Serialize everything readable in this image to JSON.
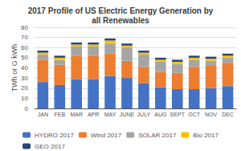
{
  "chart_data": {
    "type": "bar",
    "stacked": true,
    "title": "2017 Profile of US Electric Energy Generation by\nall Renewables",
    "ylabel": "TWh or G kWh",
    "categories": [
      "JAN",
      "FEB",
      "MAR",
      "APR",
      "MAY",
      "JUNE",
      "JULY",
      "AUG",
      "SEPT",
      "OCT",
      "NOV",
      "DEC"
    ],
    "series": [
      {
        "name": "HYDRO 2017",
        "color": "#4472c4",
        "values": [
          26,
          23,
          29,
          29,
          32,
          30,
          25,
          21,
          19,
          19,
          20,
          22
        ]
      },
      {
        "name": "Wind 2017",
        "color": "#ed7d31",
        "values": [
          22,
          20,
          23,
          23,
          22,
          17,
          16,
          15,
          16,
          22,
          22,
          23
        ]
      },
      {
        "name": "SOLAR 2017",
        "color": "#a5a5a5",
        "values": [
          5,
          5,
          9,
          9,
          10,
          13,
          12,
          10,
          9,
          7,
          5,
          5
        ]
      },
      {
        "name": "Bio 2017",
        "color": "#ffc000",
        "values": [
          2,
          2,
          2,
          2,
          3,
          2,
          2,
          2,
          2,
          2,
          2,
          2
        ]
      },
      {
        "name": "GEO 2017",
        "color": "#264478",
        "values": [
          2,
          2,
          2,
          2,
          2,
          2,
          2,
          2,
          2,
          2,
          2,
          2
        ]
      }
    ],
    "ylim": [
      0,
      80
    ],
    "yticks": [
      0,
      10,
      20,
      30,
      40,
      50,
      60,
      70,
      80
    ],
    "grid": true,
    "legend": "bottom"
  }
}
